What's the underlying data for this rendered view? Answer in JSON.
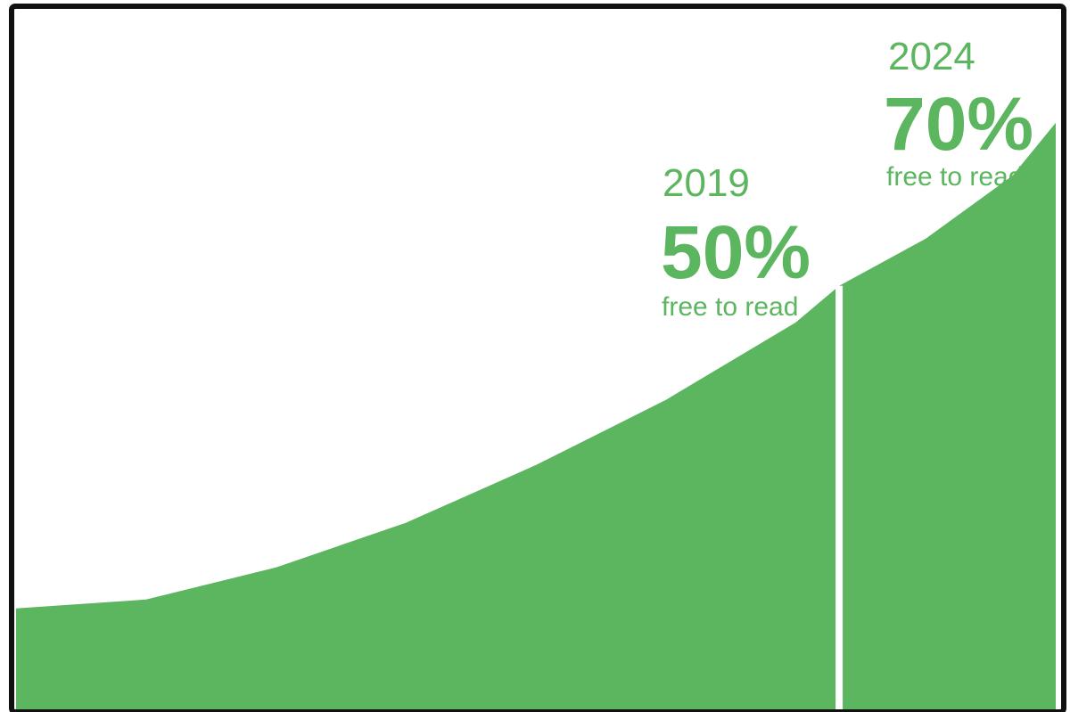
{
  "chart_data": {
    "type": "area",
    "title": "",
    "xlabel": "",
    "ylabel": "",
    "x": [
      2000,
      2003,
      2006,
      2009,
      2012,
      2015,
      2018,
      2019,
      2021,
      2023,
      2024
    ],
    "series": [
      {
        "values": [
          15.9,
          17.3,
          22.3,
          29.3,
          38.3,
          48.5,
          60.6,
          66.3,
          73.7,
          83.5,
          91.8
        ]
      }
    ],
    "xlim": [
      2000,
      2024
    ],
    "ylim": [
      0,
      110
    ],
    "grid": false,
    "legend": "none",
    "annotations": [
      {
        "year": "2019",
        "value": "50%",
        "caption": "free to read"
      },
      {
        "year": "2024",
        "value": "70%",
        "caption": "free to read"
      }
    ],
    "marker_line_x": 2019,
    "colors": {
      "area": "#5cb55f",
      "text": "#5cb55f",
      "frame": "#111111",
      "marker_line": "#ffffff"
    }
  }
}
